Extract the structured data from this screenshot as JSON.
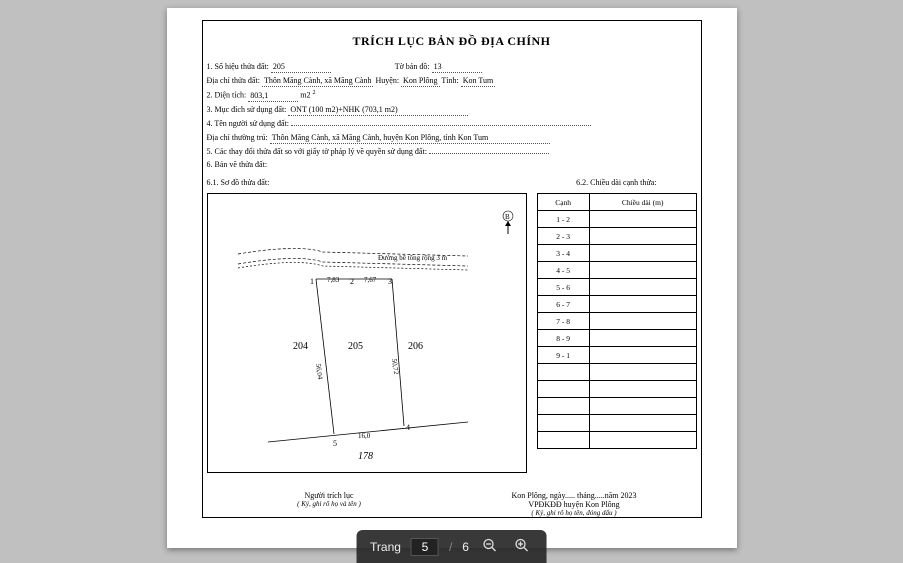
{
  "document": {
    "title": "TRÍCH LỤC BẢN ĐỒ ĐỊA CHÍNH",
    "fields": {
      "line1_label": "1. Số hiệu thửa đất:",
      "plot_no": "205",
      "map_sheet_label": "Tờ bản đồ:",
      "map_sheet": "13",
      "addr_label": "Địa chỉ thửa đất:",
      "addr_village": "Thôn Măng Cành, xã Măng Cành",
      "district_label": "Huyện:",
      "district": "Kon Plông",
      "province_label": "Tỉnh:",
      "province": "Kon Tum",
      "area_label": "2. Diện tích:",
      "area_value": "803,1",
      "area_unit": "m2",
      "purpose_label": "3. Mục đích sử dụng đất:",
      "purpose_value": "ONT (100 m2)+NHK (703,1 m2)",
      "owner_label": "4. Tên người sử dụng đất:",
      "owner_addr_label": "Địa chỉ thường trú:",
      "owner_addr": "Thôn Măng Cành, xã Măng Cành, huyện Kon Plông, tỉnh Kon Tum",
      "changes_label": "5. Các thay đổi thửa đất so với giấy tờ pháp lý về quyền sử dụng đất:",
      "drawing_label": "6. Bản vẽ thửa đất:",
      "sketch_label": "6.1. Sơ đồ thửa đất:",
      "edge_label": "6.2. Chiều dài cạnh thửa:"
    },
    "edge_table": {
      "col_edge": "Cạnh",
      "col_len": "Chiều dài (m)",
      "rows": [
        "1 - 2",
        "2 - 3",
        "3 - 4",
        "4 - 5",
        "5 - 6",
        "6 - 7",
        "7 - 8",
        "8 - 9",
        "9 - 1"
      ]
    },
    "plot": {
      "road_label": "Đường bê tông rộng 3 m",
      "p1": "1",
      "p2": "2",
      "p3": "3",
      "p4": "4",
      "p5": "5",
      "d12": "7,83",
      "d23": "7,67",
      "left_len": "56,04",
      "right_len": "50,72",
      "bottom_len": "16,0",
      "lot_left": "204",
      "lot_center": "205",
      "lot_right": "206",
      "lot_below": "178",
      "north_label": "B"
    },
    "footer": {
      "left_title": "Người trích lục",
      "left_sig": "( Ký, ghi rõ họ và tên )",
      "right_line1": "Kon Plông, ngày..... tháng.....năm 2023",
      "right_title": "VPĐKĐĐ huyện Kon Plông",
      "right_sig": "( Ký, ghi rõ họ tên, đóng dấu )"
    }
  },
  "toolbar": {
    "page_label": "Trang",
    "current": "5",
    "sep": "/",
    "total": "6",
    "zoom_out": "−",
    "zoom_in": "+"
  },
  "colors": {
    "page_bg": "#ffffff",
    "viewer_bg": "#c0c0c0",
    "toolbar_bg": "rgba(40,40,40,0.92)"
  }
}
